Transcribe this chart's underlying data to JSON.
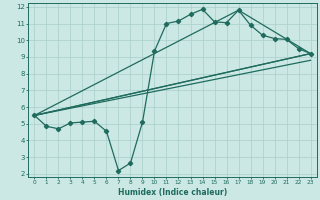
{
  "xlabel": "Humidex (Indice chaleur)",
  "xlim": [
    -0.5,
    23.5
  ],
  "ylim": [
    1.8,
    12.2
  ],
  "xticks": [
    0,
    1,
    2,
    3,
    4,
    5,
    6,
    7,
    8,
    9,
    10,
    11,
    12,
    13,
    14,
    15,
    16,
    17,
    18,
    19,
    20,
    21,
    22,
    23
  ],
  "yticks": [
    2,
    3,
    4,
    5,
    6,
    7,
    8,
    9,
    10,
    11,
    12
  ],
  "bg_color": "#cce8e4",
  "grid_color": "#aacfcb",
  "line_color": "#1f6b5e",
  "line1_x": [
    0,
    1,
    2,
    3,
    4,
    5,
    6,
    7,
    8,
    9,
    10,
    11,
    12,
    13,
    14,
    15,
    16,
    17,
    18,
    19,
    20,
    21,
    22,
    23
  ],
  "line1_y": [
    5.5,
    4.85,
    4.7,
    5.05,
    5.1,
    5.15,
    4.55,
    2.2,
    2.65,
    5.1,
    9.35,
    11.0,
    11.15,
    11.55,
    11.85,
    11.1,
    11.05,
    11.8,
    10.9,
    10.3,
    10.1,
    10.05,
    9.5,
    9.2
  ],
  "line2_x": [
    0,
    23
  ],
  "line2_y": [
    5.5,
    9.2
  ],
  "line3_x": [
    0,
    23
  ],
  "line3_y": [
    5.5,
    9.2
  ],
  "line4_x": [
    0,
    17,
    23
  ],
  "line4_y": [
    5.5,
    11.8,
    9.2
  ],
  "line5_x": [
    0,
    23
  ],
  "line5_y": [
    5.5,
    8.8
  ]
}
